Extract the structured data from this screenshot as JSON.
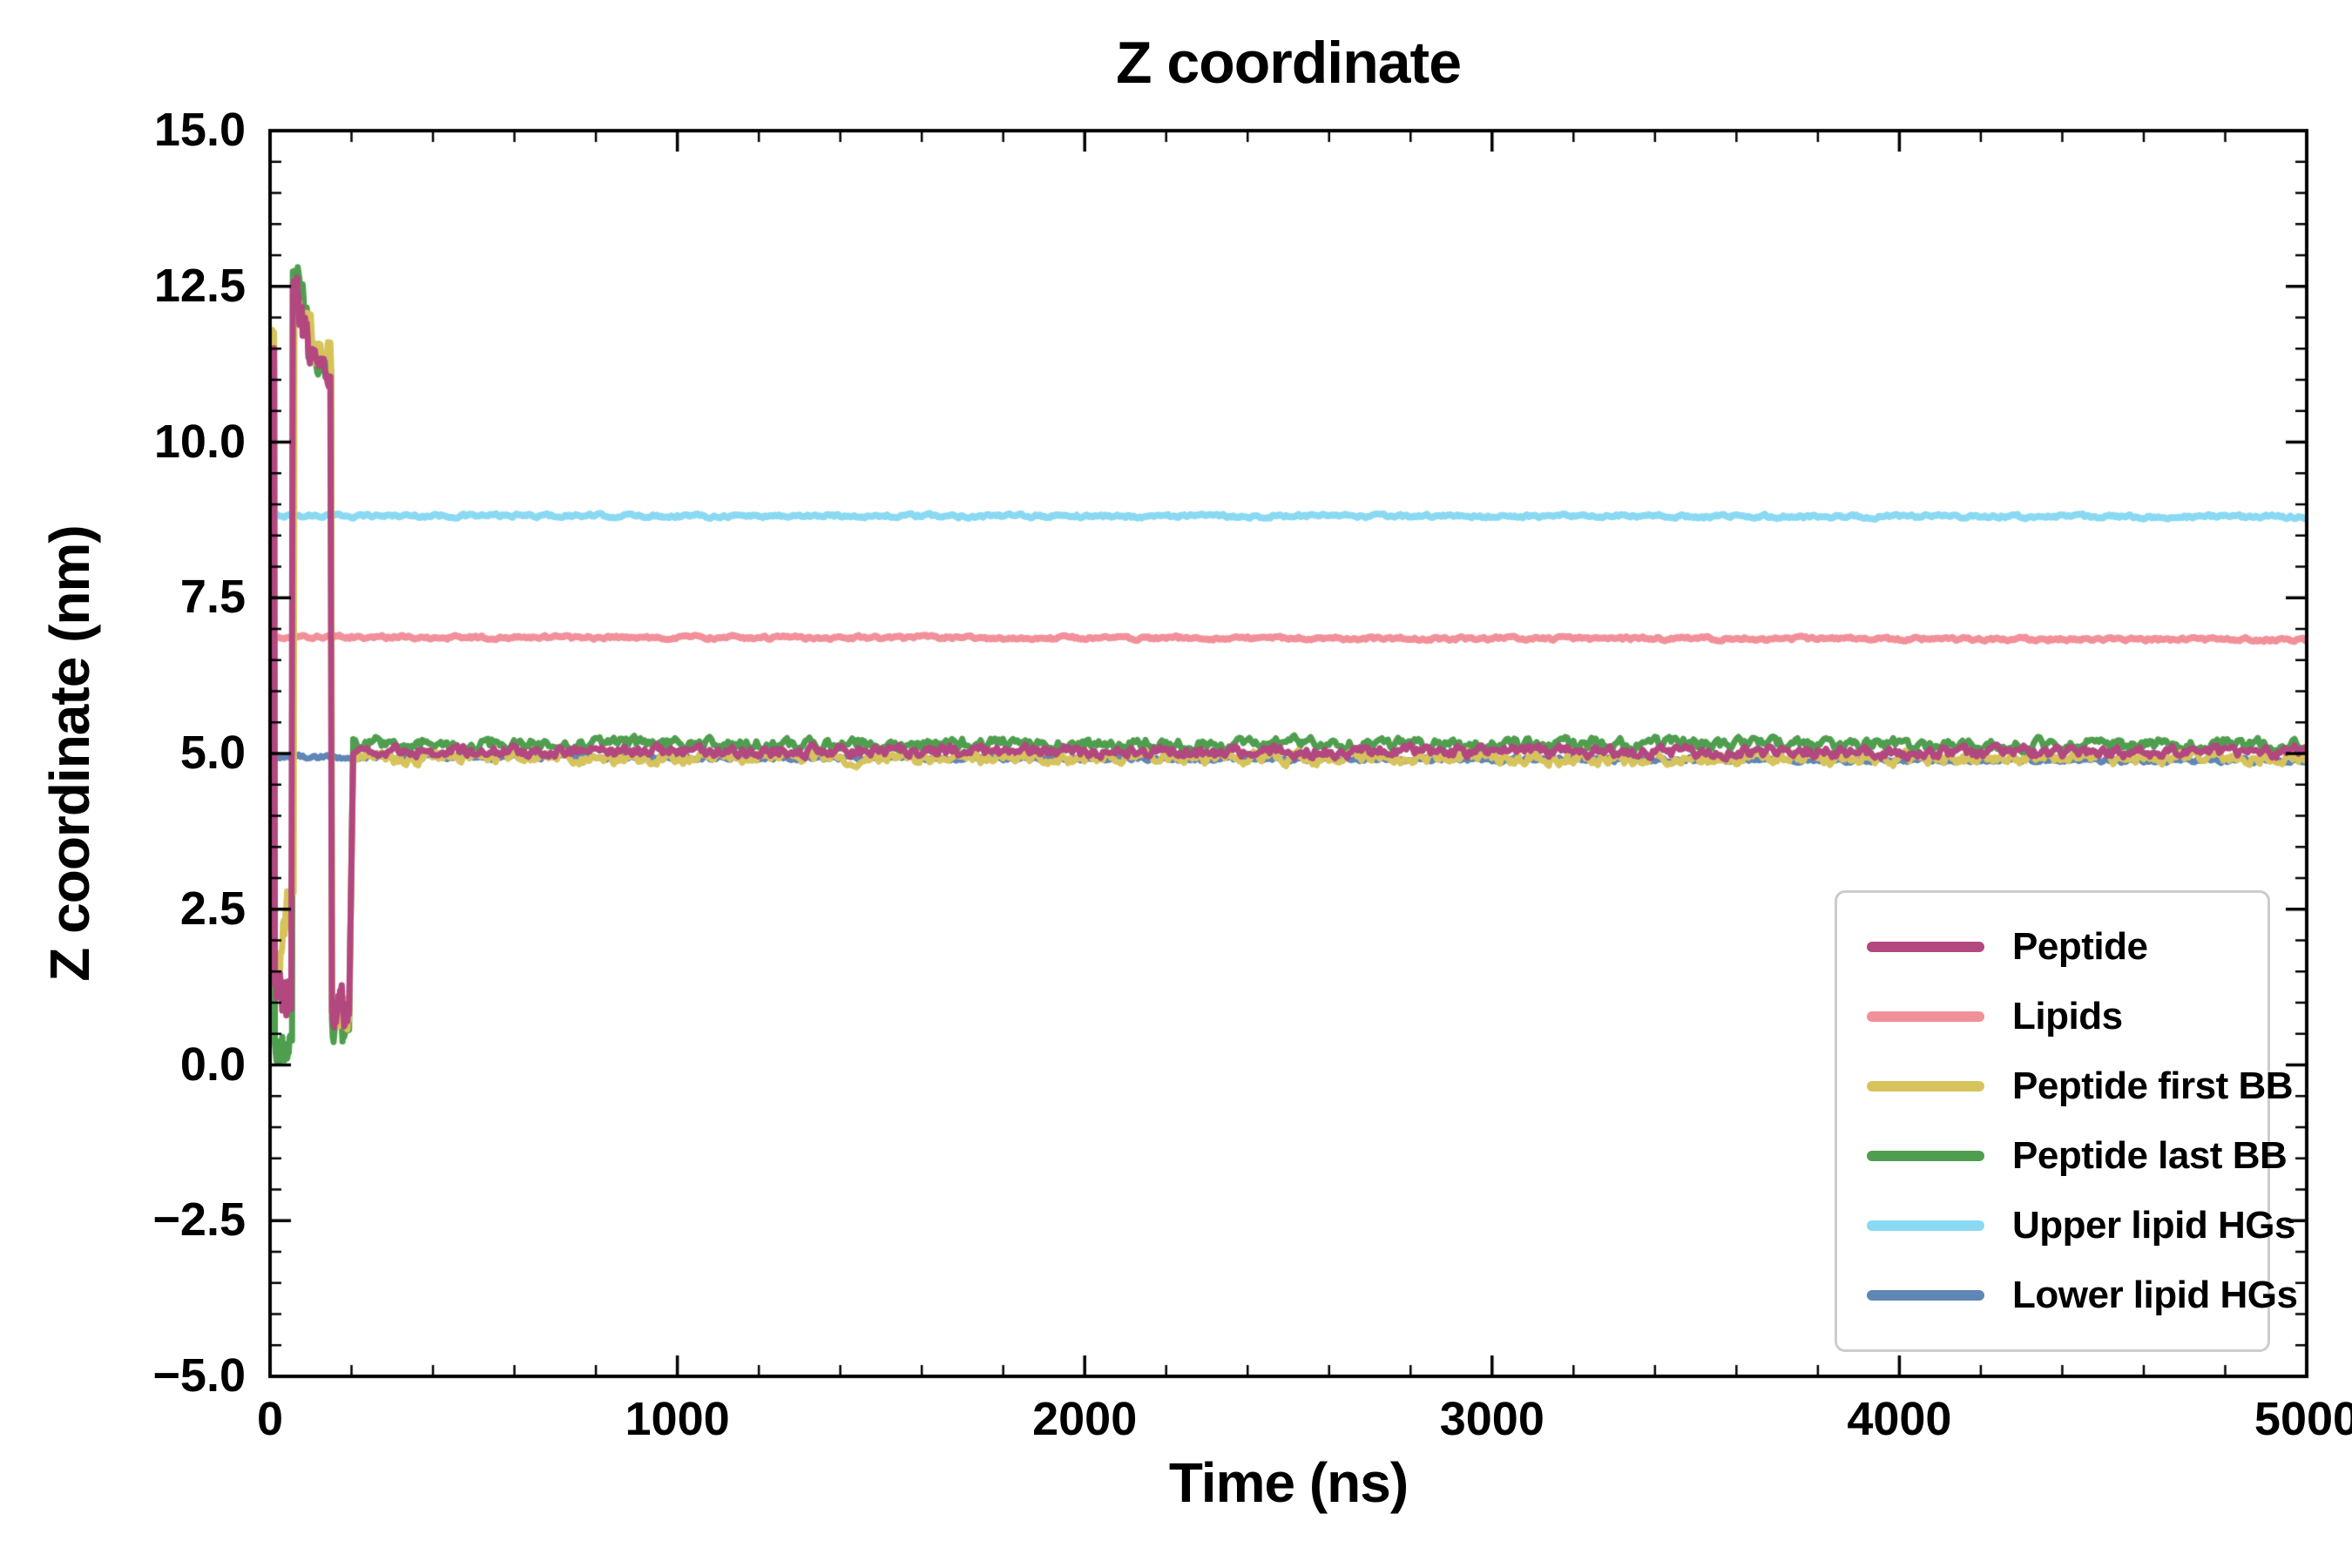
{
  "chart_data": {
    "type": "line",
    "title": "Z coordinate",
    "xlabel": "Time (ns)",
    "ylabel": "Z coordinate (nm)",
    "xlim": [
      0,
      5000
    ],
    "ylim": [
      -5.0,
      15.0
    ],
    "xticks": [
      0,
      1000,
      2000,
      3000,
      4000,
      5000
    ],
    "xtick_labels": [
      "0",
      "1000",
      "2000",
      "3000",
      "4000",
      "5000"
    ],
    "yticks": [
      -5.0,
      -2.5,
      0.0,
      2.5,
      5.0,
      7.5,
      10.0,
      12.5,
      15.0
    ],
    "ytick_labels": [
      "−5.0",
      "−2.5",
      "0.0",
      "2.5",
      "5.0",
      "7.5",
      "10.0",
      "12.5",
      "15.0"
    ],
    "x_minor_step": 200,
    "y_minor_step": 0.5,
    "grid": false,
    "legend": {
      "position": "lower right",
      "entries": [
        {
          "label": "Peptide",
          "color": "#b3477f"
        },
        {
          "label": "Lipids",
          "color": "#f2909a"
        },
        {
          "label": "Peptide first BB",
          "color": "#d6c35c"
        },
        {
          "label": "Peptide last BB",
          "color": "#4f9e4f"
        },
        {
          "label": "Upper lipid HGs",
          "color": "#8ad9f2"
        },
        {
          "label": "Lower lipid HGs",
          "color": "#5f86b5"
        }
      ]
    },
    "series": [
      {
        "name": "Upper lipid HGs",
        "color": "#8ad9f2",
        "linewidth": 8,
        "segments": [
          {
            "t0": 0,
            "t1": 5000,
            "dt": 5,
            "base": 8.82,
            "base_end": 8.8,
            "amp": 0.035
          }
        ]
      },
      {
        "name": "Lipids",
        "color": "#f2909a",
        "linewidth": 8,
        "segments": [
          {
            "t0": 0,
            "t1": 5000,
            "dt": 5,
            "base": 6.87,
            "base_end": 6.83,
            "amp": 0.035
          }
        ]
      },
      {
        "name": "Lower lipid HGs",
        "color": "#5f86b5",
        "linewidth": 7,
        "segments": [
          {
            "t0": 0,
            "t1": 5000,
            "dt": 5,
            "base": 4.95,
            "base_end": 4.88,
            "amp": 0.045
          }
        ]
      },
      {
        "name": "Peptide last BB",
        "color": "#4f9e4f",
        "linewidth": 7,
        "segments": [
          {
            "t0": 0,
            "t1": 10,
            "dt": 2,
            "base": 11.3,
            "base_end": 11.5,
            "amp": 0.25
          },
          {
            "t0": 12,
            "t1": 54,
            "dt": 2,
            "base": 0.35,
            "base_end": 0.3,
            "amp": 0.35
          },
          {
            "t0": 56,
            "t1": 92,
            "dt": 2,
            "base": 13.0,
            "base_end": 12.2,
            "amp": 0.4
          },
          {
            "t0": 94,
            "t1": 150,
            "dt": 2,
            "base": 11.5,
            "base_end": 11.2,
            "amp": 0.25
          },
          {
            "t0": 152,
            "t1": 192,
            "dt": 2,
            "base": 0.55,
            "base_end": 0.55,
            "amp": 0.35
          },
          {
            "t0": 194,
            "t1": 204,
            "dt": 2,
            "base": 0.55,
            "base_end": 5.15,
            "amp": 0.05
          },
          {
            "t0": 204,
            "t1": 5000,
            "dt": 5,
            "base": 5.16,
            "base_end": 5.14,
            "amp": 0.12
          }
        ]
      },
      {
        "name": "Peptide first BB",
        "color": "#d6c35c",
        "linewidth": 7,
        "segments": [
          {
            "t0": 0,
            "t1": 10,
            "dt": 2,
            "base": 11.4,
            "base_end": 11.9,
            "amp": 0.4
          },
          {
            "t0": 12,
            "t1": 58,
            "dt": 2,
            "base": 1.3,
            "base_end": 2.8,
            "amp": 0.6
          },
          {
            "t0": 60,
            "t1": 92,
            "dt": 2,
            "base": 12.1,
            "base_end": 11.9,
            "amp": 0.3
          },
          {
            "t0": 94,
            "t1": 150,
            "dt": 2,
            "base": 11.7,
            "base_end": 11.3,
            "amp": 0.35
          },
          {
            "t0": 152,
            "t1": 192,
            "dt": 2,
            "base": 0.75,
            "base_end": 0.75,
            "amp": 0.35
          },
          {
            "t0": 194,
            "t1": 204,
            "dt": 2,
            "base": 0.75,
            "base_end": 4.9,
            "amp": 0.05
          },
          {
            "t0": 204,
            "t1": 5000,
            "dt": 5,
            "base": 4.94,
            "base_end": 4.92,
            "amp": 0.12
          }
        ]
      },
      {
        "name": "Peptide",
        "color": "#b3477f",
        "linewidth": 7,
        "segments": [
          {
            "t0": 0,
            "t1": 10,
            "dt": 2,
            "base": 10.7,
            "base_end": 11.3,
            "amp": 0.4
          },
          {
            "t0": 12,
            "t1": 52,
            "dt": 2,
            "base": 1.1,
            "base_end": 1.0,
            "amp": 0.55
          },
          {
            "t0": 56,
            "t1": 92,
            "dt": 2,
            "base": 12.4,
            "base_end": 11.6,
            "amp": 0.45
          },
          {
            "t0": 94,
            "t1": 148,
            "dt": 2,
            "base": 11.4,
            "base_end": 11.1,
            "amp": 0.18
          },
          {
            "t0": 152,
            "t1": 192,
            "dt": 2,
            "base": 0.9,
            "base_end": 0.8,
            "amp": 0.4
          },
          {
            "t0": 194,
            "t1": 204,
            "dt": 2,
            "base": 0.8,
            "base_end": 5.0,
            "amp": 0.05
          },
          {
            "t0": 204,
            "t1": 5000,
            "dt": 5,
            "base": 5.04,
            "base_end": 5.02,
            "amp": 0.11
          }
        ]
      }
    ]
  }
}
